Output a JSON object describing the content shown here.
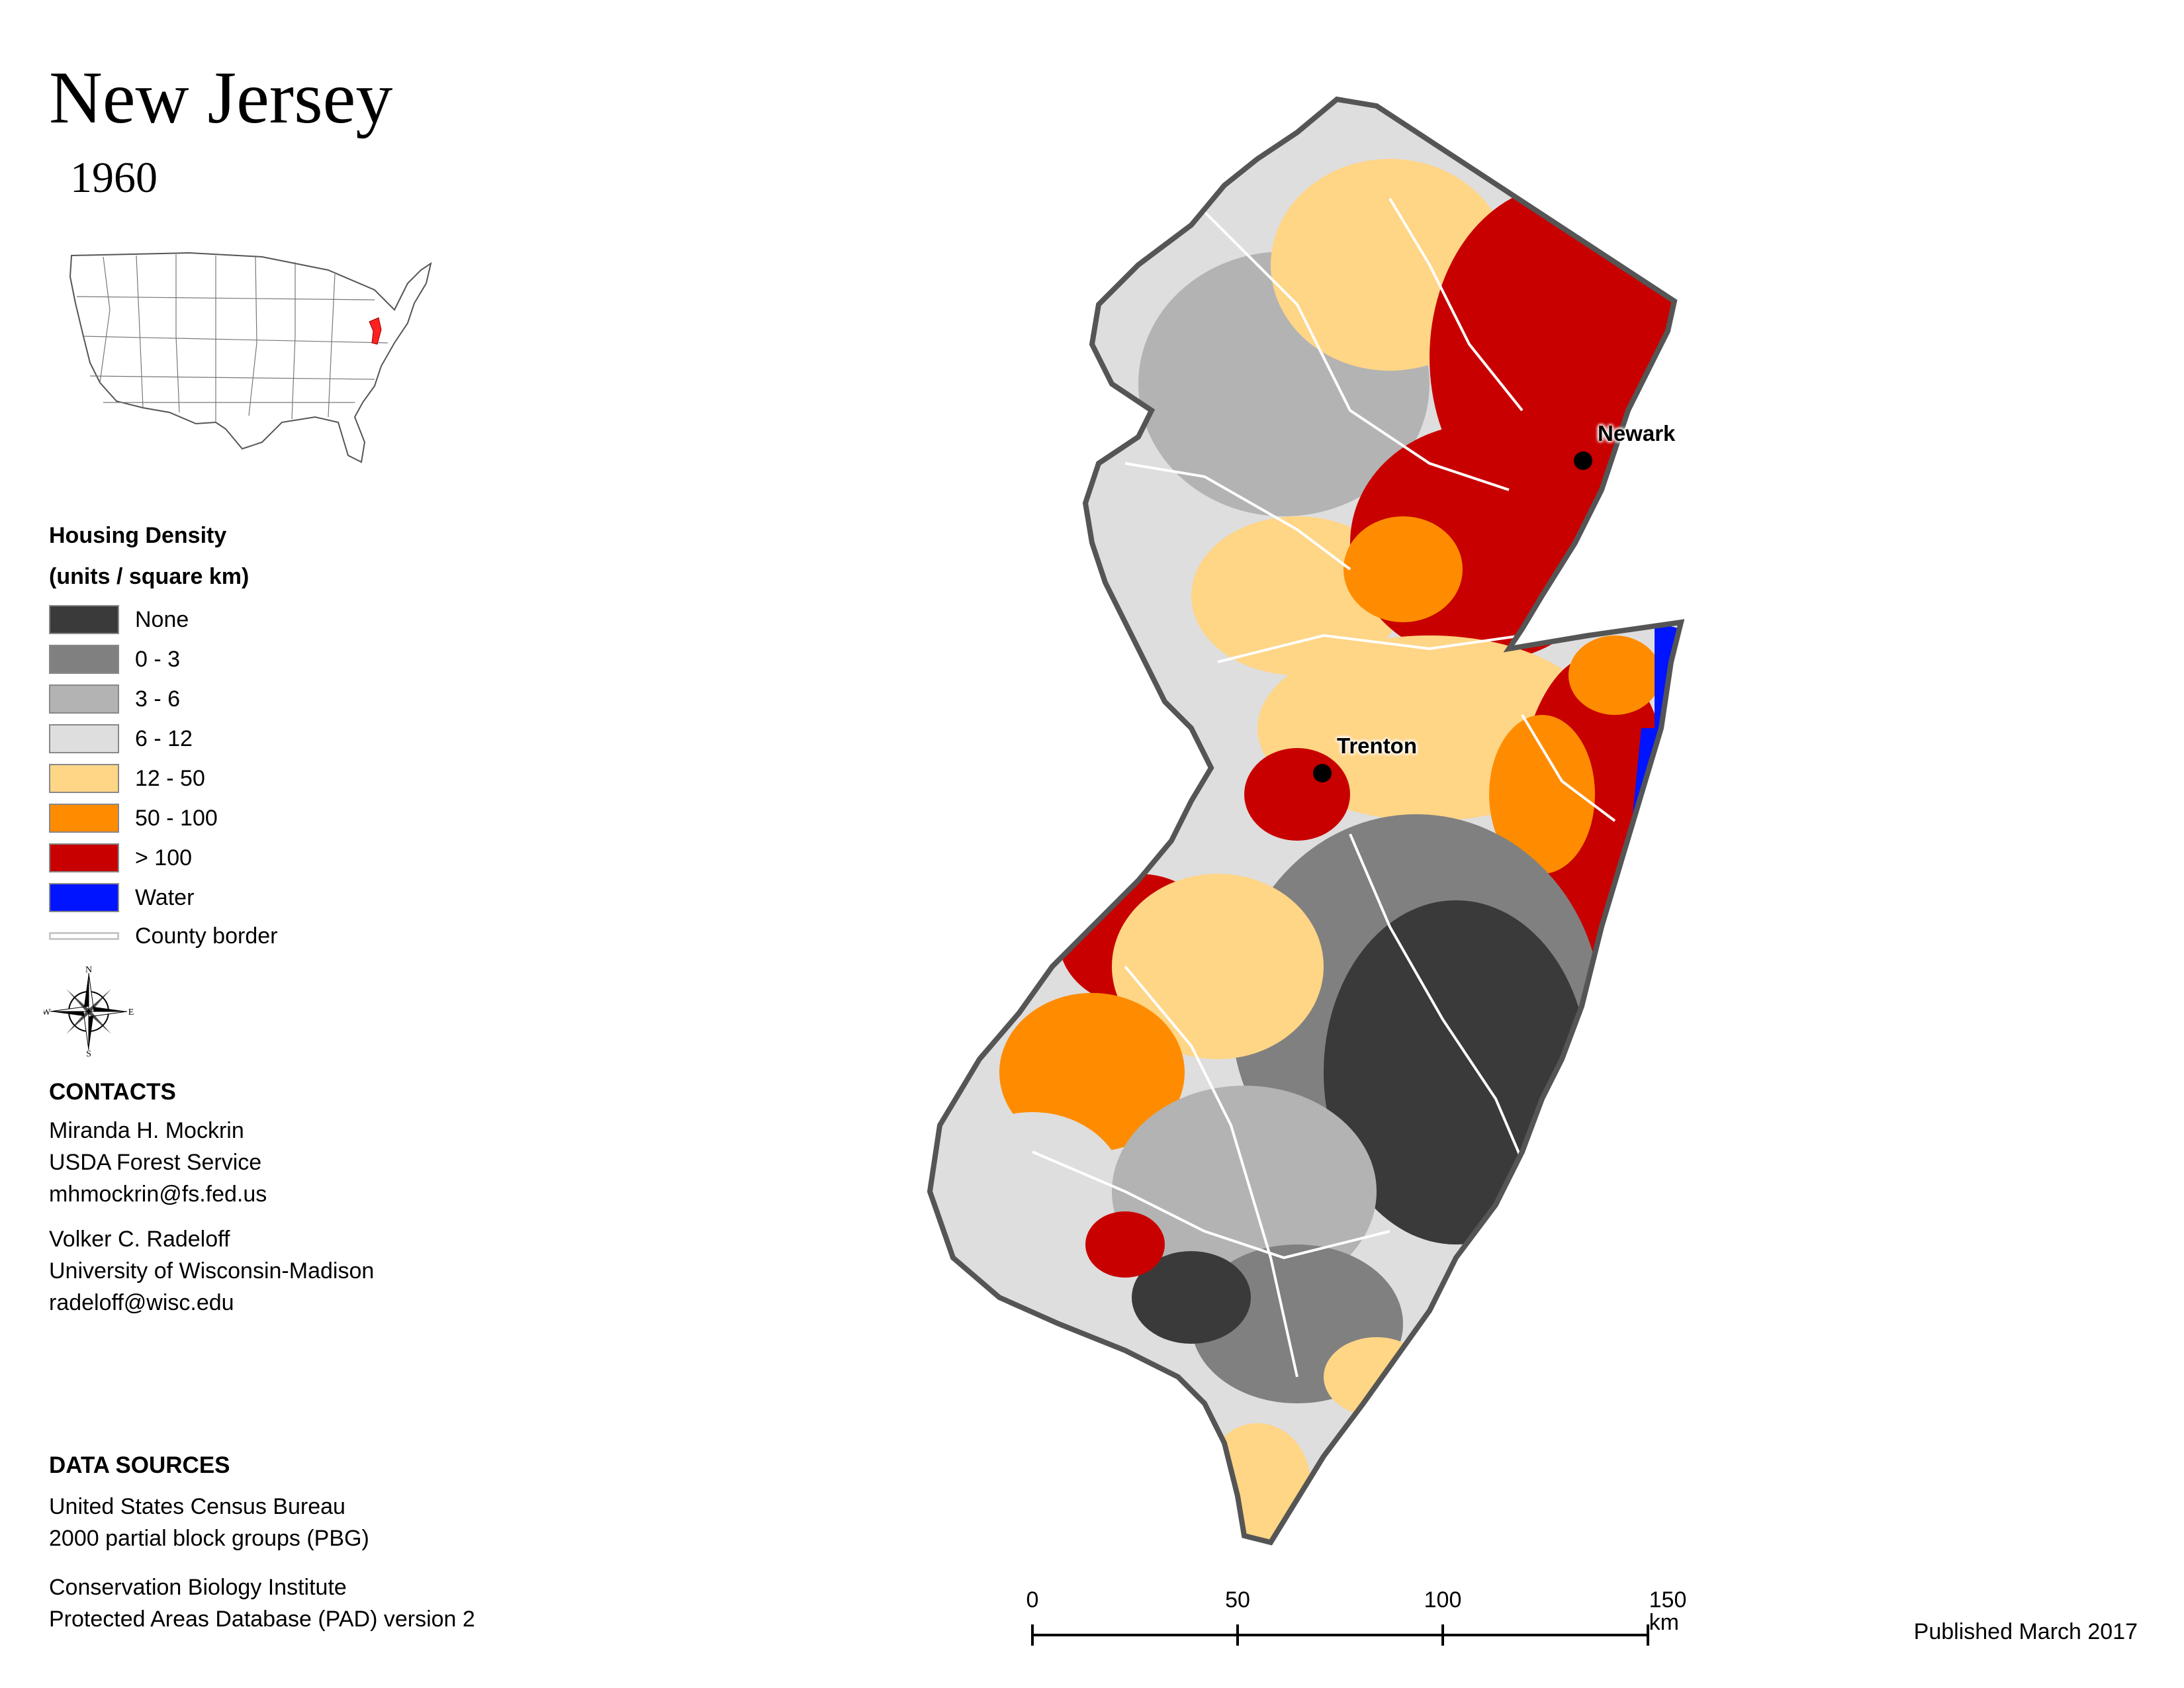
{
  "map": {
    "title": "New Jersey",
    "year": "1960",
    "cities": [
      {
        "name": "Newark"
      },
      {
        "name": "Trenton"
      }
    ]
  },
  "legend": {
    "heading": "Housing Density",
    "units": "(units / square km)",
    "items": [
      {
        "label": "None",
        "color": "#3a3a3a"
      },
      {
        "label": "0 - 3",
        "color": "#808080"
      },
      {
        "label": "3 - 6",
        "color": "#b3b3b3"
      },
      {
        "label": "6 - 12",
        "color": "#dedede"
      },
      {
        "label": "12 - 50",
        "color": "#ffd586"
      },
      {
        "label": "50 - 100",
        "color": "#ff8c00"
      },
      {
        "label": "> 100",
        "color": "#c80000"
      },
      {
        "label": "Water",
        "color": "#0014ff"
      }
    ],
    "county_border_label": "County border"
  },
  "compass": {
    "n": "N",
    "s": "S",
    "e": "E",
    "w": "W"
  },
  "contacts": {
    "heading": "CONTACTS",
    "people": [
      {
        "name": "Miranda H. Mockrin",
        "org": "USDA Forest Service",
        "email": "mhmockrin@fs.fed.us"
      },
      {
        "name": "Volker C. Radeloff",
        "org": "University of Wisconsin-Madison",
        "email": "radeloff@wisc.edu"
      }
    ]
  },
  "data_sources": {
    "heading": "DATA SOURCES",
    "lines": [
      "United States Census Bureau",
      "2000 partial block groups (PBG)",
      "Conservation Biology Institute",
      "Protected Areas Database (PAD) version 2"
    ]
  },
  "scale_bar": {
    "ticks": [
      "0",
      "50",
      "100",
      "150 km"
    ]
  },
  "published": "Published March 2017"
}
